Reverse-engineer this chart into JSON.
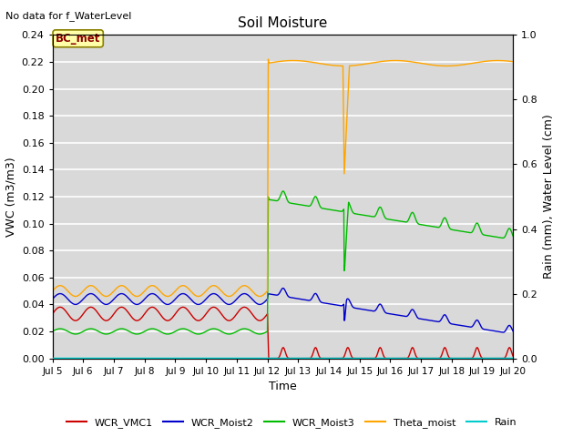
{
  "title": "Soil Moisture",
  "top_left_text": "No data for f_WaterLevel",
  "xlabel": "Time",
  "ylabel_left": "VWC (m3/m3)",
  "ylabel_right": "Rain (mm), Water Level (cm)",
  "xlim_days": [
    5,
    20
  ],
  "ylim_left": [
    0.0,
    0.24
  ],
  "ylim_right": [
    0.0,
    1.0
  ],
  "bg_color": "#d9d9d9",
  "grid_color": "white",
  "legend_labels": [
    "WCR_VMC1",
    "WCR_Moist2",
    "WCR_Moist3",
    "Theta_moist",
    "Rain"
  ],
  "legend_colors": [
    "#cc0000",
    "#0000cc",
    "#00bb00",
    "#ffa500",
    "#00cccc"
  ],
  "annotation_box": "BC_met",
  "yticks_left": [
    0.0,
    0.02,
    0.04,
    0.06,
    0.08,
    0.1,
    0.12,
    0.14,
    0.16,
    0.18,
    0.2,
    0.22,
    0.24
  ],
  "yticks_right": [
    0.0,
    0.2,
    0.4,
    0.6,
    0.8,
    1.0
  ],
  "xtick_days": [
    5,
    6,
    7,
    8,
    9,
    10,
    11,
    12,
    13,
    14,
    15,
    16,
    17,
    18,
    19,
    20
  ]
}
